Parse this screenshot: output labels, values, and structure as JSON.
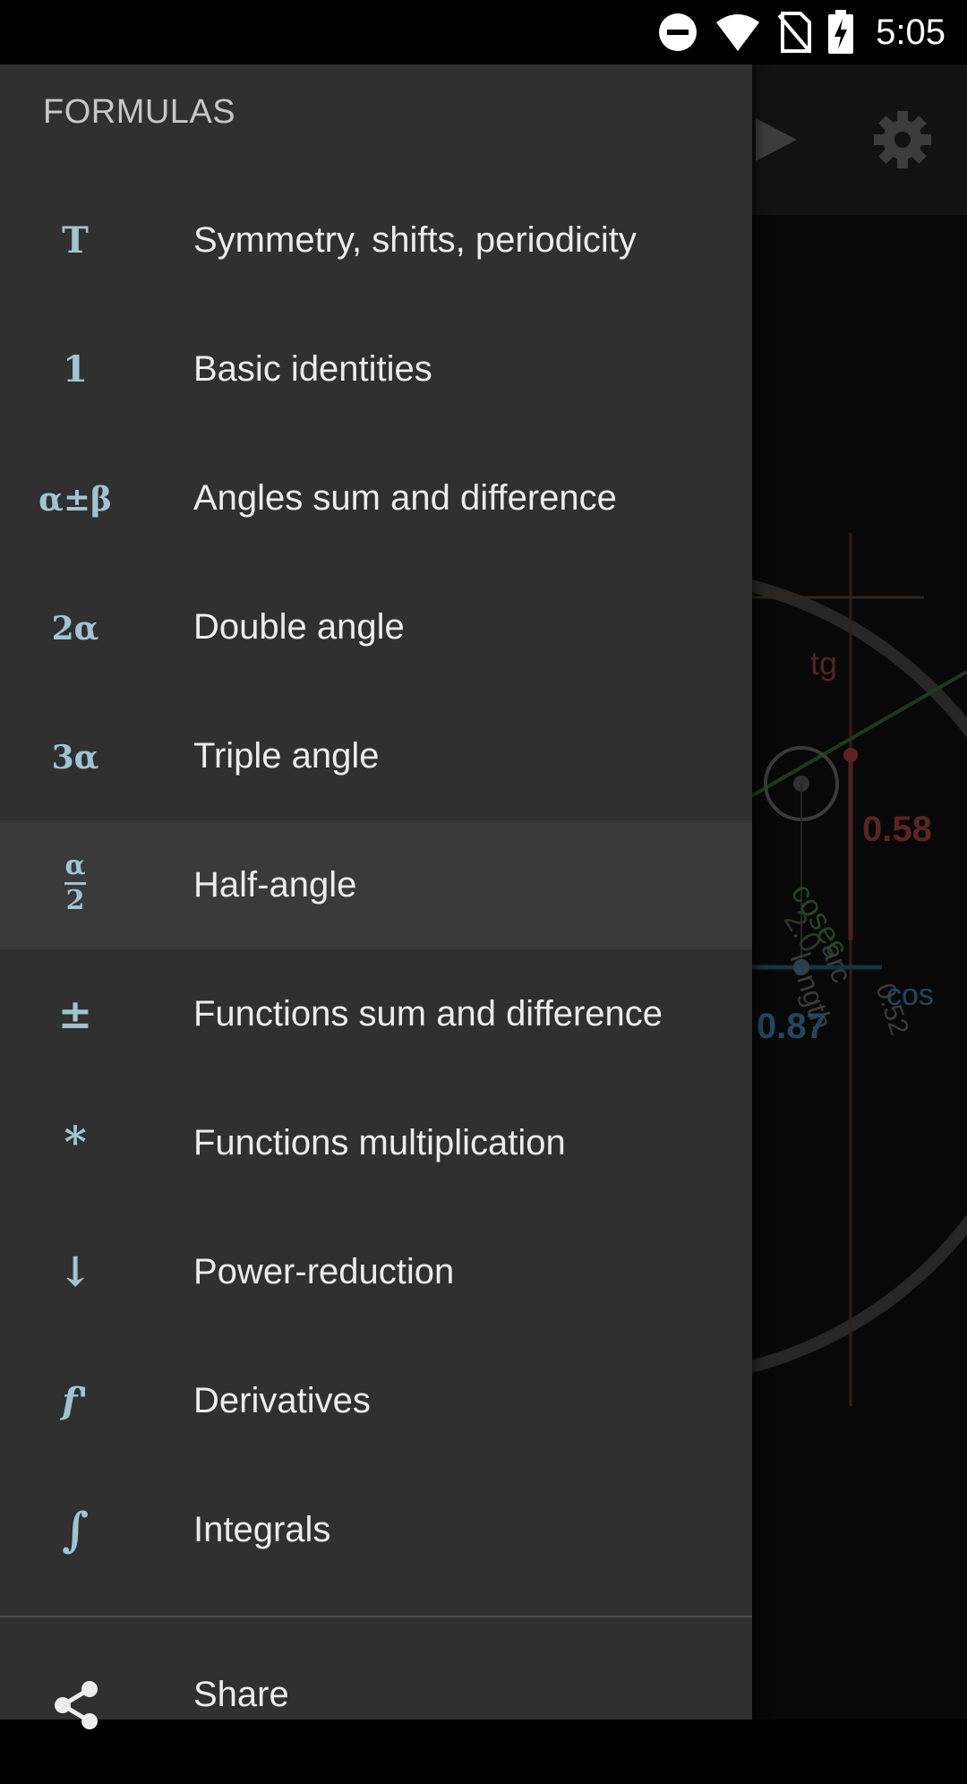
{
  "status_bar": {
    "time": "5:05",
    "icons": [
      "do-not-disturb-icon",
      "wifi-icon",
      "no-sim-icon",
      "battery-charging-icon"
    ]
  },
  "background_app": {
    "toolbar_icons": [
      "play-icon",
      "settings-icon"
    ],
    "labels": {
      "tg": "tg",
      "cosec": "cosec",
      "cosec_value": "2.0",
      "sin_value": "0.58",
      "arc_length": "arc length",
      "arc_value": "0.52",
      "cos": "cos",
      "cos_value": "0.87"
    },
    "colors": {
      "tg": "#7a3a3a",
      "cosec": "#3d6a3a",
      "cos": "#2f6f93"
    }
  },
  "drawer": {
    "header": "FORMULAS",
    "items": [
      {
        "icon": "T",
        "icon_name": "symmetry-icon",
        "label": "Symmetry, shifts, periodicity"
      },
      {
        "icon": "1",
        "icon_name": "identity-icon",
        "label": "Basic identities"
      },
      {
        "icon": "α±β",
        "icon_name": "angles-sum-icon",
        "label": "Angles sum and difference"
      },
      {
        "icon": "2α",
        "icon_name": "double-angle-icon",
        "label": "Double angle"
      },
      {
        "icon": "3α",
        "icon_name": "triple-angle-icon",
        "label": "Triple angle"
      },
      {
        "icon_top": "α",
        "icon_bottom": "2",
        "icon_name": "half-angle-icon",
        "label": "Half-angle",
        "selected": true
      },
      {
        "icon": "±",
        "icon_name": "plus-minus-icon",
        "label": "Functions sum and difference"
      },
      {
        "icon": "*",
        "icon_name": "asterisk-icon",
        "label": "Functions multiplication"
      },
      {
        "icon": "↓",
        "icon_name": "down-arrow-icon",
        "label": "Power-reduction"
      },
      {
        "icon": "f'",
        "icon_name": "derivative-icon",
        "label": "Derivatives"
      },
      {
        "icon": "∫",
        "icon_name": "integral-icon",
        "label": "Integrals"
      }
    ],
    "share_label": "Share",
    "accent_icon_color": "#9fc4d2"
  }
}
